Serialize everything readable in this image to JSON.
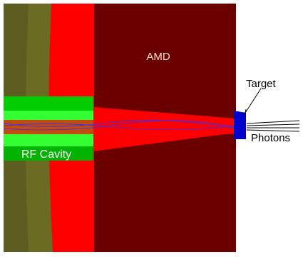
{
  "labels": {
    "amd": "AMD",
    "target": "Target",
    "photons": "Photons",
    "rf_cavity": "RF Cavity"
  }
}
